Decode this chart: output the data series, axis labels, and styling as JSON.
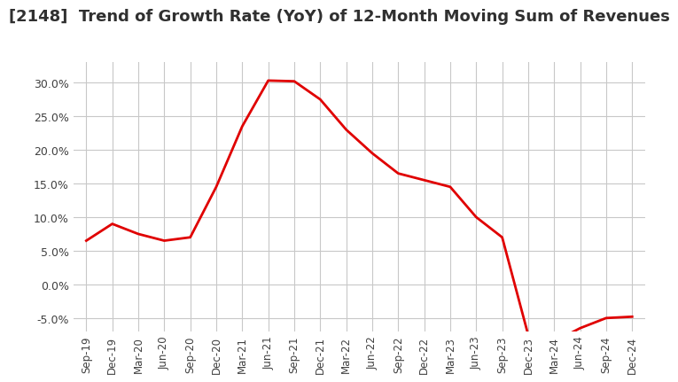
{
  "title": "[2148]  Trend of Growth Rate (YoY) of 12-Month Moving Sum of Revenues",
  "title_fontsize": 13,
  "line_color": "#e00000",
  "background_color": "#ffffff",
  "grid_color": "#c8c8c8",
  "ylim": [
    -0.07,
    0.33
  ],
  "yticks": [
    -0.05,
    0.0,
    0.05,
    0.1,
    0.15,
    0.2,
    0.25,
    0.3
  ],
  "ytick_labels": [
    "-5.0%",
    "0.0%",
    "5.0%",
    "10.0%",
    "15.0%",
    "20.0%",
    "25.0%",
    "30.0%"
  ],
  "x_labels": [
    "Sep-19",
    "Dec-19",
    "Mar-20",
    "Jun-20",
    "Sep-20",
    "Dec-20",
    "Mar-21",
    "Jun-21",
    "Sep-21",
    "Dec-21",
    "Mar-22",
    "Jun-22",
    "Sep-22",
    "Dec-22",
    "Mar-23",
    "Jun-23",
    "Sep-23",
    "Dec-23",
    "Mar-24",
    "Jun-24",
    "Sep-24",
    "Dec-24"
  ],
  "values": [
    0.065,
    0.09,
    0.075,
    0.065,
    0.07,
    0.145,
    0.235,
    0.303,
    0.302,
    0.275,
    0.23,
    0.195,
    0.165,
    0.155,
    0.145,
    0.1,
    0.07,
    -0.075,
    -0.085,
    -0.065,
    -0.05,
    -0.048
  ]
}
